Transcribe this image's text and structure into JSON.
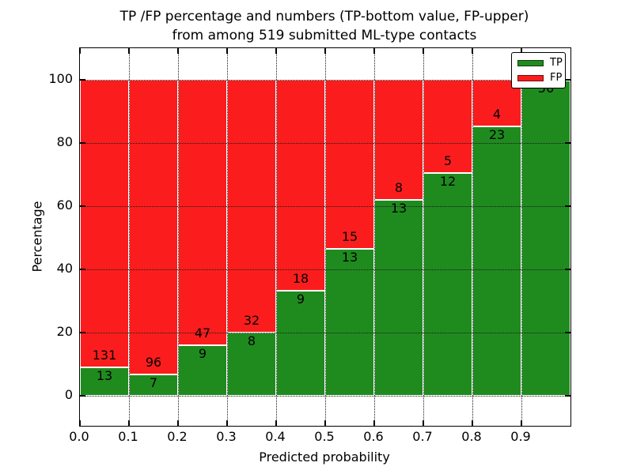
{
  "chart_data": {
    "type": "bar",
    "mode": "stacked-percentage",
    "title_lines": [
      "TP /FP percentage and numbers (TP-bottom value, FP-upper)",
      "from among 519 submitted ML-type contacts"
    ],
    "xlabel": "Predicted probability",
    "ylabel": "Percentage",
    "total_contacts": 519,
    "xlim": [
      0.0,
      1.0
    ],
    "ylim": [
      -9.5,
      110
    ],
    "grid": true,
    "legend_position": "upper-right",
    "bin_edges": [
      0.0,
      0.1,
      0.2,
      0.3,
      0.4,
      0.5,
      0.6,
      0.7,
      0.8,
      0.9,
      1.0
    ],
    "xticks": [
      "0.0",
      "0.1",
      "0.2",
      "0.3",
      "0.4",
      "0.5",
      "0.6",
      "0.7",
      "0.8",
      "0.9"
    ],
    "yticks": [
      0,
      20,
      40,
      60,
      80,
      100
    ],
    "series": [
      {
        "name": "TP",
        "color": "#1f8b1f",
        "counts": [
          13,
          7,
          9,
          8,
          9,
          13,
          13,
          12,
          23,
          56
        ]
      },
      {
        "name": "FP",
        "color": "#fb1d1d",
        "counts": [
          131,
          96,
          47,
          32,
          18,
          15,
          8,
          5,
          4,
          0
        ]
      }
    ]
  },
  "colors": {
    "tp_green": "#1f8b1f",
    "fp_red": "#fb1d1d",
    "axis": "#000000",
    "grid": "#1a1a1a",
    "background": "#ffffff"
  }
}
